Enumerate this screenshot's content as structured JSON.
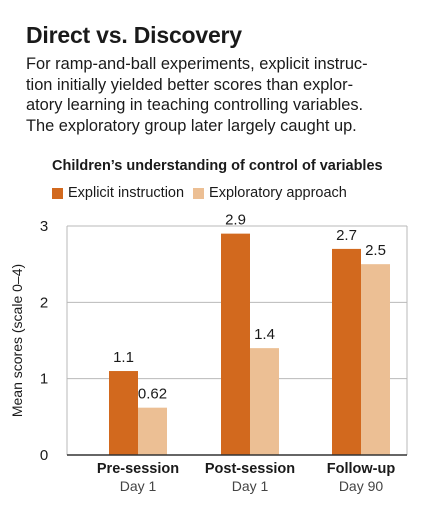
{
  "headline": "Direct vs. Discovery",
  "dek": [
    "For ramp-and-ball experiments, explicit instruc-",
    "tion initially yielded better scores than explor-",
    "atory learning in teaching controlling variables.",
    "The exploratory group later largely caught up."
  ],
  "colors": {
    "explicit": "#d2691e",
    "exploratory": "#ecbf94",
    "grid": "#b9b9b9",
    "axis": "#333333"
  },
  "chart_data": {
    "type": "bar",
    "title": "Children’s understanding of control of variables",
    "ylabel": "Mean scores (scale 0–4)",
    "ylim": [
      0,
      3
    ],
    "yticks": [
      "0",
      "1",
      "2",
      "3"
    ],
    "grid": true,
    "legend_position": "top-left",
    "categories": [
      {
        "name": "Pre-session",
        "sub": "Day 1"
      },
      {
        "name": "Post-session",
        "sub": "Day 1"
      },
      {
        "name": "Follow-up",
        "sub": "Day 90"
      }
    ],
    "series": [
      {
        "name": "Explicit instruction",
        "values": [
          1.1,
          2.9,
          2.7
        ],
        "labels": [
          "1.1",
          "2.9",
          "2.7"
        ]
      },
      {
        "name": "Exploratory approach",
        "values": [
          0.62,
          1.4,
          2.5
        ],
        "labels": [
          "0.62",
          "1.4",
          "2.5"
        ]
      }
    ]
  }
}
